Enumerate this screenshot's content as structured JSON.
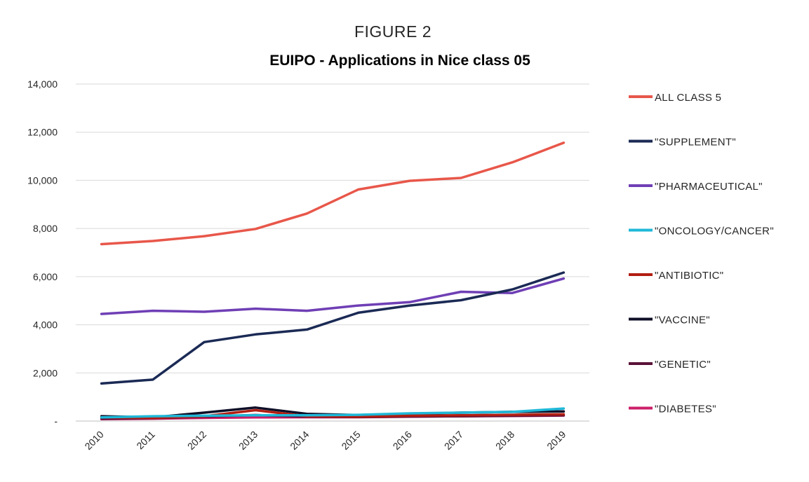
{
  "figure_label": "FIGURE 2",
  "chart_data": {
    "type": "line",
    "title": "EUIPO - Applications in Nice class 05",
    "xlabel": "",
    "ylabel": "",
    "categories": [
      "2010",
      "2011",
      "2012",
      "2013",
      "2014",
      "2015",
      "2016",
      "2017",
      "2018",
      "2019"
    ],
    "ylim": [
      0,
      14000
    ],
    "yticks": [
      0,
      2000,
      4000,
      6000,
      8000,
      10000,
      12000,
      14000
    ],
    "ytick_labels": [
      "-",
      "2,000",
      "4,000",
      "6,000",
      "8,000",
      "10,000",
      "12,000",
      "14,000"
    ],
    "grid": true,
    "legend_position": "right",
    "series": [
      {
        "name": "ALL CLASS 5",
        "color": "#e8574a",
        "values": [
          7350,
          7480,
          7680,
          7980,
          8620,
          9620,
          9980,
          10100,
          10750,
          11560
        ]
      },
      {
        "name": "\"SUPPLEMENT\"",
        "color": "#1b2a55",
        "values": [
          1560,
          1720,
          3280,
          3600,
          3800,
          4500,
          4800,
          5020,
          5470,
          6170
        ]
      },
      {
        "name": "\"PHARMACEUTICAL\"",
        "color": "#6f3fb5",
        "values": [
          4450,
          4580,
          4540,
          4670,
          4580,
          4800,
          4940,
          5370,
          5320,
          5920
        ]
      },
      {
        "name": "\"ONCOLOGY/CANCER\"",
        "color": "#1fb8d8",
        "values": [
          150,
          200,
          220,
          240,
          240,
          260,
          320,
          350,
          380,
          520
        ]
      },
      {
        "name": "\"ANTIBIOTIC\"",
        "color": "#b21e12",
        "values": [
          150,
          130,
          200,
          450,
          200,
          180,
          220,
          240,
          260,
          280
        ]
      },
      {
        "name": "\"VACCINE\"",
        "color": "#0f0f28",
        "values": [
          200,
          150,
          350,
          560,
          300,
          250,
          300,
          350,
          380,
          400
        ]
      },
      {
        "name": "\"GENETIC\"",
        "color": "#5a1238",
        "values": [
          100,
          120,
          180,
          250,
          180,
          170,
          190,
          200,
          220,
          240
        ]
      },
      {
        "name": "\"DIABETES\"",
        "color": "#cc1f6a",
        "values": [
          80,
          100,
          130,
          150,
          160,
          160,
          180,
          200,
          210,
          230
        ]
      }
    ]
  }
}
